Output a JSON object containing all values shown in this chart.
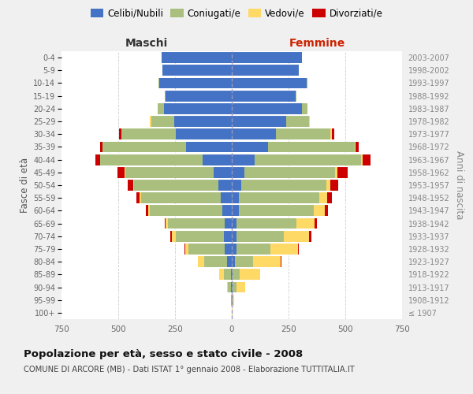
{
  "age_groups": [
    "100+",
    "95-99",
    "90-94",
    "85-89",
    "80-84",
    "75-79",
    "70-74",
    "65-69",
    "60-64",
    "55-59",
    "50-54",
    "45-49",
    "40-44",
    "35-39",
    "30-34",
    "25-29",
    "20-24",
    "15-19",
    "10-14",
    "5-9",
    "0-4"
  ],
  "birth_years": [
    "≤ 1907",
    "1908-1912",
    "1913-1917",
    "1918-1922",
    "1923-1927",
    "1928-1932",
    "1933-1937",
    "1938-1942",
    "1943-1947",
    "1948-1952",
    "1953-1957",
    "1958-1962",
    "1963-1967",
    "1968-1972",
    "1973-1977",
    "1978-1982",
    "1983-1987",
    "1988-1992",
    "1993-1997",
    "1998-2002",
    "2003-2007"
  ],
  "male": {
    "celibe": [
      0,
      0,
      2,
      5,
      20,
      30,
      35,
      30,
      40,
      50,
      60,
      80,
      130,
      200,
      245,
      255,
      300,
      290,
      320,
      305,
      310
    ],
    "coniugato": [
      0,
      2,
      15,
      30,
      100,
      160,
      210,
      250,
      320,
      350,
      370,
      390,
      450,
      370,
      240,
      100,
      25,
      5,
      2,
      0,
      0
    ],
    "vedovo": [
      0,
      0,
      5,
      20,
      30,
      15,
      20,
      10,
      8,
      5,
      3,
      2,
      0,
      0,
      0,
      5,
      0,
      0,
      0,
      0,
      0
    ],
    "divorziato": [
      0,
      0,
      0,
      0,
      0,
      5,
      5,
      5,
      10,
      15,
      25,
      30,
      20,
      10,
      10,
      0,
      0,
      0,
      0,
      0,
      0
    ]
  },
  "female": {
    "nubile": [
      0,
      2,
      5,
      5,
      15,
      20,
      20,
      20,
      30,
      30,
      40,
      55,
      100,
      160,
      195,
      240,
      310,
      280,
      330,
      295,
      310
    ],
    "coniugata": [
      0,
      2,
      15,
      30,
      80,
      150,
      210,
      265,
      330,
      355,
      375,
      400,
      470,
      380,
      240,
      100,
      25,
      5,
      2,
      0,
      0
    ],
    "vedova": [
      2,
      5,
      40,
      90,
      120,
      120,
      110,
      80,
      50,
      35,
      20,
      10,
      5,
      5,
      5,
      5,
      0,
      0,
      0,
      0,
      0
    ],
    "divorziata": [
      0,
      0,
      0,
      0,
      5,
      5,
      10,
      10,
      15,
      20,
      35,
      45,
      35,
      15,
      10,
      0,
      0,
      0,
      0,
      0,
      0
    ]
  },
  "colors": {
    "celibe": "#4472C4",
    "coniugato": "#AABF7E",
    "vedovo": "#FFD966",
    "divorziato": "#CC0000"
  },
  "xlim": 750,
  "title": "Popolazione per età, sesso e stato civile - 2008",
  "subtitle": "COMUNE DI ARCORE (MB) - Dati ISTAT 1° gennaio 2008 - Elaborazione TUTTITALIA.IT",
  "ylabel_left": "Fasce di età",
  "ylabel_right": "Anni di nascita",
  "xlabel_male": "Maschi",
  "xlabel_female": "Femmine",
  "legend_labels": [
    "Celibi/Nubili",
    "Coniugati/e",
    "Vedovi/e",
    "Divorziati/e"
  ],
  "background_color": "#f0f0f0",
  "plot_bg_color": "#ffffff"
}
